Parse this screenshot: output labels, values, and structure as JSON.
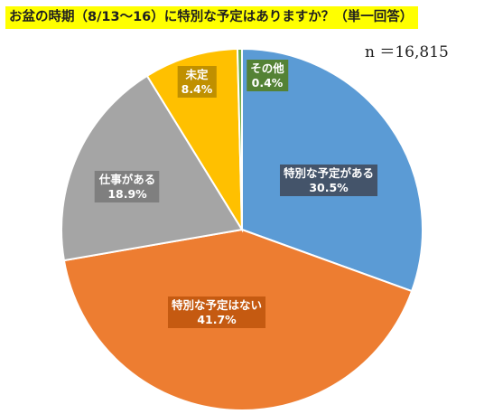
{
  "header": {
    "title": "お盆の時期（8/13〜16）に特別な予定はありますか？（単一回答）",
    "sample_size": "n ＝16,815"
  },
  "chart_data": {
    "type": "pie",
    "title": "お盆の時期（8/13〜16）に特別な予定はありますか？（単一回答）",
    "start_angle_deg": 0,
    "direction": "clockwise",
    "slices": [
      {
        "label": "特別な予定がある",
        "value": 30.5,
        "value_label": "30.5%",
        "color": "#5b9bd5",
        "label_bg": "#44546a"
      },
      {
        "label": "特別な予定はない",
        "value": 41.7,
        "value_label": "41.7%",
        "color": "#ed7d31",
        "label_bg": "#c55a11"
      },
      {
        "label": "仕事がある",
        "value": 18.9,
        "value_label": "18.9%",
        "color": "#a5a5a5",
        "label_bg": "#7f7f7f"
      },
      {
        "label": "未定",
        "value": 8.4,
        "value_label": "8.4%",
        "color": "#ffc000",
        "label_bg": "#c09000"
      },
      {
        "label": "その他",
        "value": 0.4,
        "value_label": "0.4%",
        "color": "#70ad47",
        "label_bg": "#548235"
      }
    ]
  }
}
